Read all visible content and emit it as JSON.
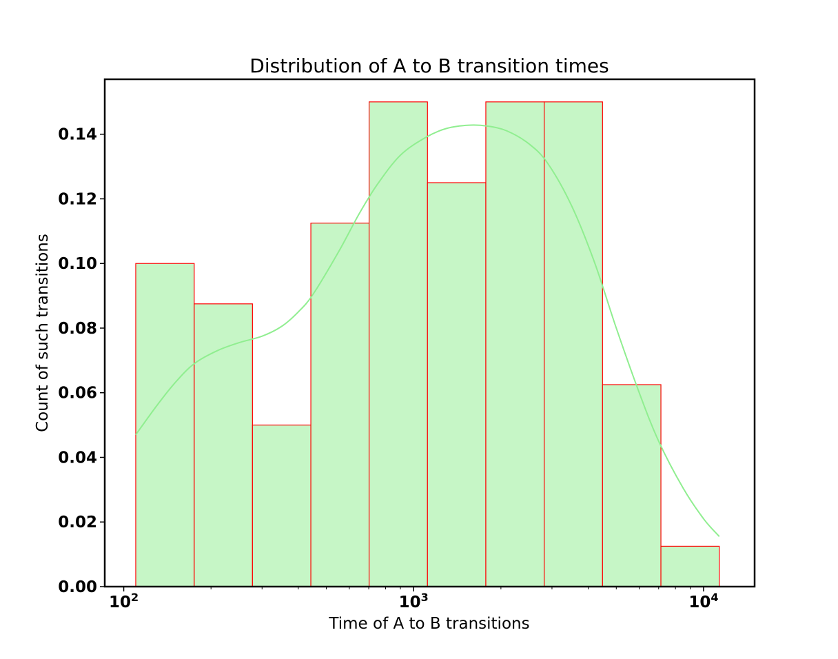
{
  "chart_data": {
    "type": "bar",
    "title": "Distribution of A to B transition times",
    "xlabel": "Time of A to B transitions",
    "ylabel": "Count of such transitions",
    "x_scale": "log",
    "xlim": [
      86,
      15000
    ],
    "ylim": [
      0,
      0.157
    ],
    "grid": false,
    "bin_edges": [
      110,
      175,
      278,
      442,
      702,
      1116,
      1774,
      2820,
      4483,
      7127,
      11330
    ],
    "values": [
      0.1,
      0.0875,
      0.05,
      0.1125,
      0.15,
      0.125,
      0.15,
      0.15,
      0.0625,
      0.0125
    ],
    "yticks": [
      "0.00",
      "0.02",
      "0.04",
      "0.06",
      "0.08",
      "0.10",
      "0.12",
      "0.14"
    ],
    "ytick_values": [
      0,
      0.02,
      0.04,
      0.06,
      0.08,
      0.1,
      0.12,
      0.14
    ],
    "xticks": [
      {
        "value": 100,
        "base": "10",
        "exp": "2"
      },
      {
        "value": 1000,
        "base": "10",
        "exp": "3"
      },
      {
        "value": 10000,
        "base": "10",
        "exp": "4"
      }
    ],
    "kde": {
      "x": [
        110,
        130,
        150,
        175,
        210,
        250,
        300,
        350,
        400,
        450,
        550,
        650,
        750,
        900,
        1100,
        1300,
        1550,
        1800,
        2100,
        2500,
        2900,
        3500,
        4200,
        5000,
        6000,
        7000,
        8500,
        10000,
        11330
      ],
      "y": [
        0.047,
        0.056,
        0.063,
        0.069,
        0.073,
        0.0755,
        0.0775,
        0.0805,
        0.085,
        0.0905,
        0.1035,
        0.1155,
        0.1245,
        0.1335,
        0.139,
        0.1418,
        0.1428,
        0.1425,
        0.141,
        0.137,
        0.131,
        0.118,
        0.1005,
        0.08,
        0.06,
        0.045,
        0.0305,
        0.021,
        0.0155
      ]
    },
    "colors": {
      "bar_fill": "#c6f6c6",
      "bar_edge": "#ff0000",
      "kde_line": "#90ee90",
      "axis": "#000000"
    }
  }
}
